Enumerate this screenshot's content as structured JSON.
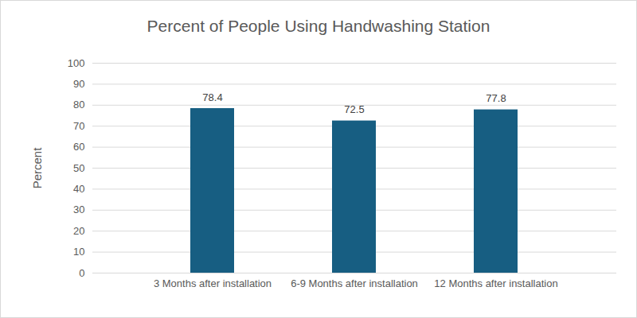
{
  "chart_data": {
    "type": "bar",
    "title": "Percent of People Using Handwashing Station",
    "y_label": "Percent",
    "categories": [
      "3 Months after installation",
      "6-9 Months after installation",
      "12 Months after installation"
    ],
    "values": [
      78.4,
      72.5,
      77.8
    ],
    "color": "#175e82",
    "ylim": [
      0,
      100
    ],
    "yticks": [
      0,
      10,
      20,
      30,
      40,
      50,
      60,
      70,
      80,
      90,
      100
    ],
    "grid": true,
    "data_labels": true
  }
}
